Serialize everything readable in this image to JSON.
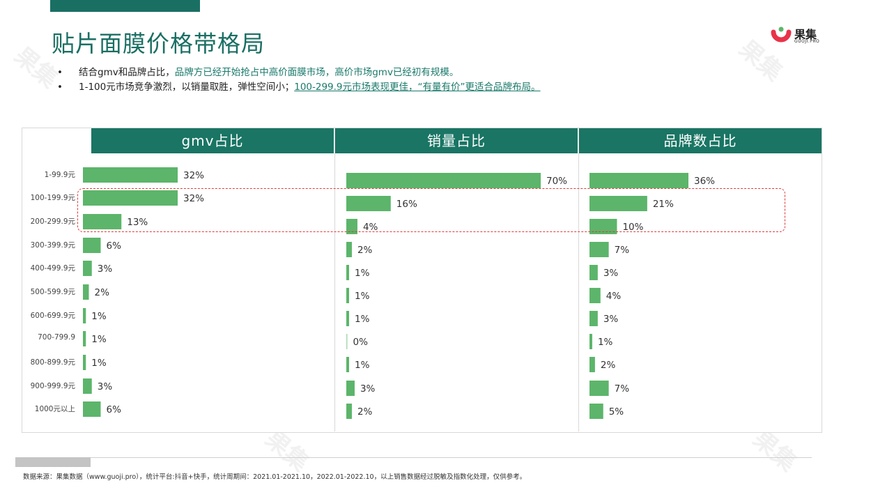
{
  "title": "贴片面膜价格带格局",
  "logo": {
    "name": "果集",
    "sub": "GUOJI.PRO"
  },
  "bullets": [
    {
      "prefix": "结合gmv和品牌占比，",
      "highlight": "品牌方已经开始抢占中高价面膜市场，高价市场gmv已经初有规模。",
      "underline": ""
    },
    {
      "prefix": "1-100元市场竞争激烈，以销量取胜，弹性空间小；",
      "highlight": "",
      "underline": "100-299.9元市场表现更佳，“有量有价”更适合品牌布局。"
    }
  ],
  "columns": [
    "gmv占比",
    "销量占比",
    "品牌数占比"
  ],
  "source": "数据来源：果集数据（www.guoji.pro），统计平台:抖音+快手，统计周期间：2021.01-2021.10，2022.01-2022.10，以上销售数据经过脱敏及指数化处理，仅供参考。",
  "colors": {
    "bar": "#5cb56a",
    "header": "#1a7564",
    "title": "#1a6f63",
    "highlight_box": "#e03a3a"
  },
  "chart_data": [
    {
      "type": "bar",
      "orientation": "horizontal",
      "title": "gmv占比",
      "categories": [
        "1-99.9元",
        "100-199.9元",
        "200-299.9元",
        "300-399.9元",
        "400-499.9元",
        "500-599.9元",
        "600-699.9元",
        "700-799.9",
        "800-899.9元",
        "900-999.9元",
        "1000元以上"
      ],
      "values": [
        32,
        32,
        13,
        6,
        3,
        2,
        1,
        1,
        1,
        3,
        6
      ],
      "labels": [
        "32%",
        "32%",
        "13%",
        "6%",
        "3%",
        "2%",
        "1%",
        "1%",
        "1%",
        "3%",
        "6%"
      ],
      "unit": "%"
    },
    {
      "type": "bar",
      "orientation": "horizontal",
      "title": "销量占比",
      "categories": [
        "1-99.9元",
        "100-199.9元",
        "200-299.9元",
        "300-399.9元",
        "400-499.9元",
        "500-599.9元",
        "600-699.9元",
        "700-799.9",
        "800-899.9元",
        "900-999.9元",
        "1000元以上"
      ],
      "values": [
        70,
        16,
        4,
        2,
        1,
        1,
        1,
        0,
        1,
        3,
        2
      ],
      "labels": [
        "70%",
        "16%",
        "4%",
        "2%",
        "1%",
        "1%",
        "1%",
        "0%",
        "1%",
        "3%",
        "2%"
      ],
      "unit": "%"
    },
    {
      "type": "bar",
      "orientation": "horizontal",
      "title": "品牌数占比",
      "categories": [
        "1-99.9元",
        "100-199.9元",
        "200-299.9元",
        "300-399.9元",
        "400-499.9元",
        "500-599.9元",
        "600-699.9元",
        "700-799.9",
        "800-899.9元",
        "900-999.9元",
        "1000元以上"
      ],
      "values": [
        36,
        21,
        10,
        7,
        3,
        4,
        3,
        1,
        2,
        7,
        5
      ],
      "labels": [
        "36%",
        "21%",
        "10%",
        "7%",
        "3%",
        "4%",
        "3%",
        "1%",
        "2%",
        "7%",
        "5%"
      ],
      "unit": "%"
    }
  ]
}
